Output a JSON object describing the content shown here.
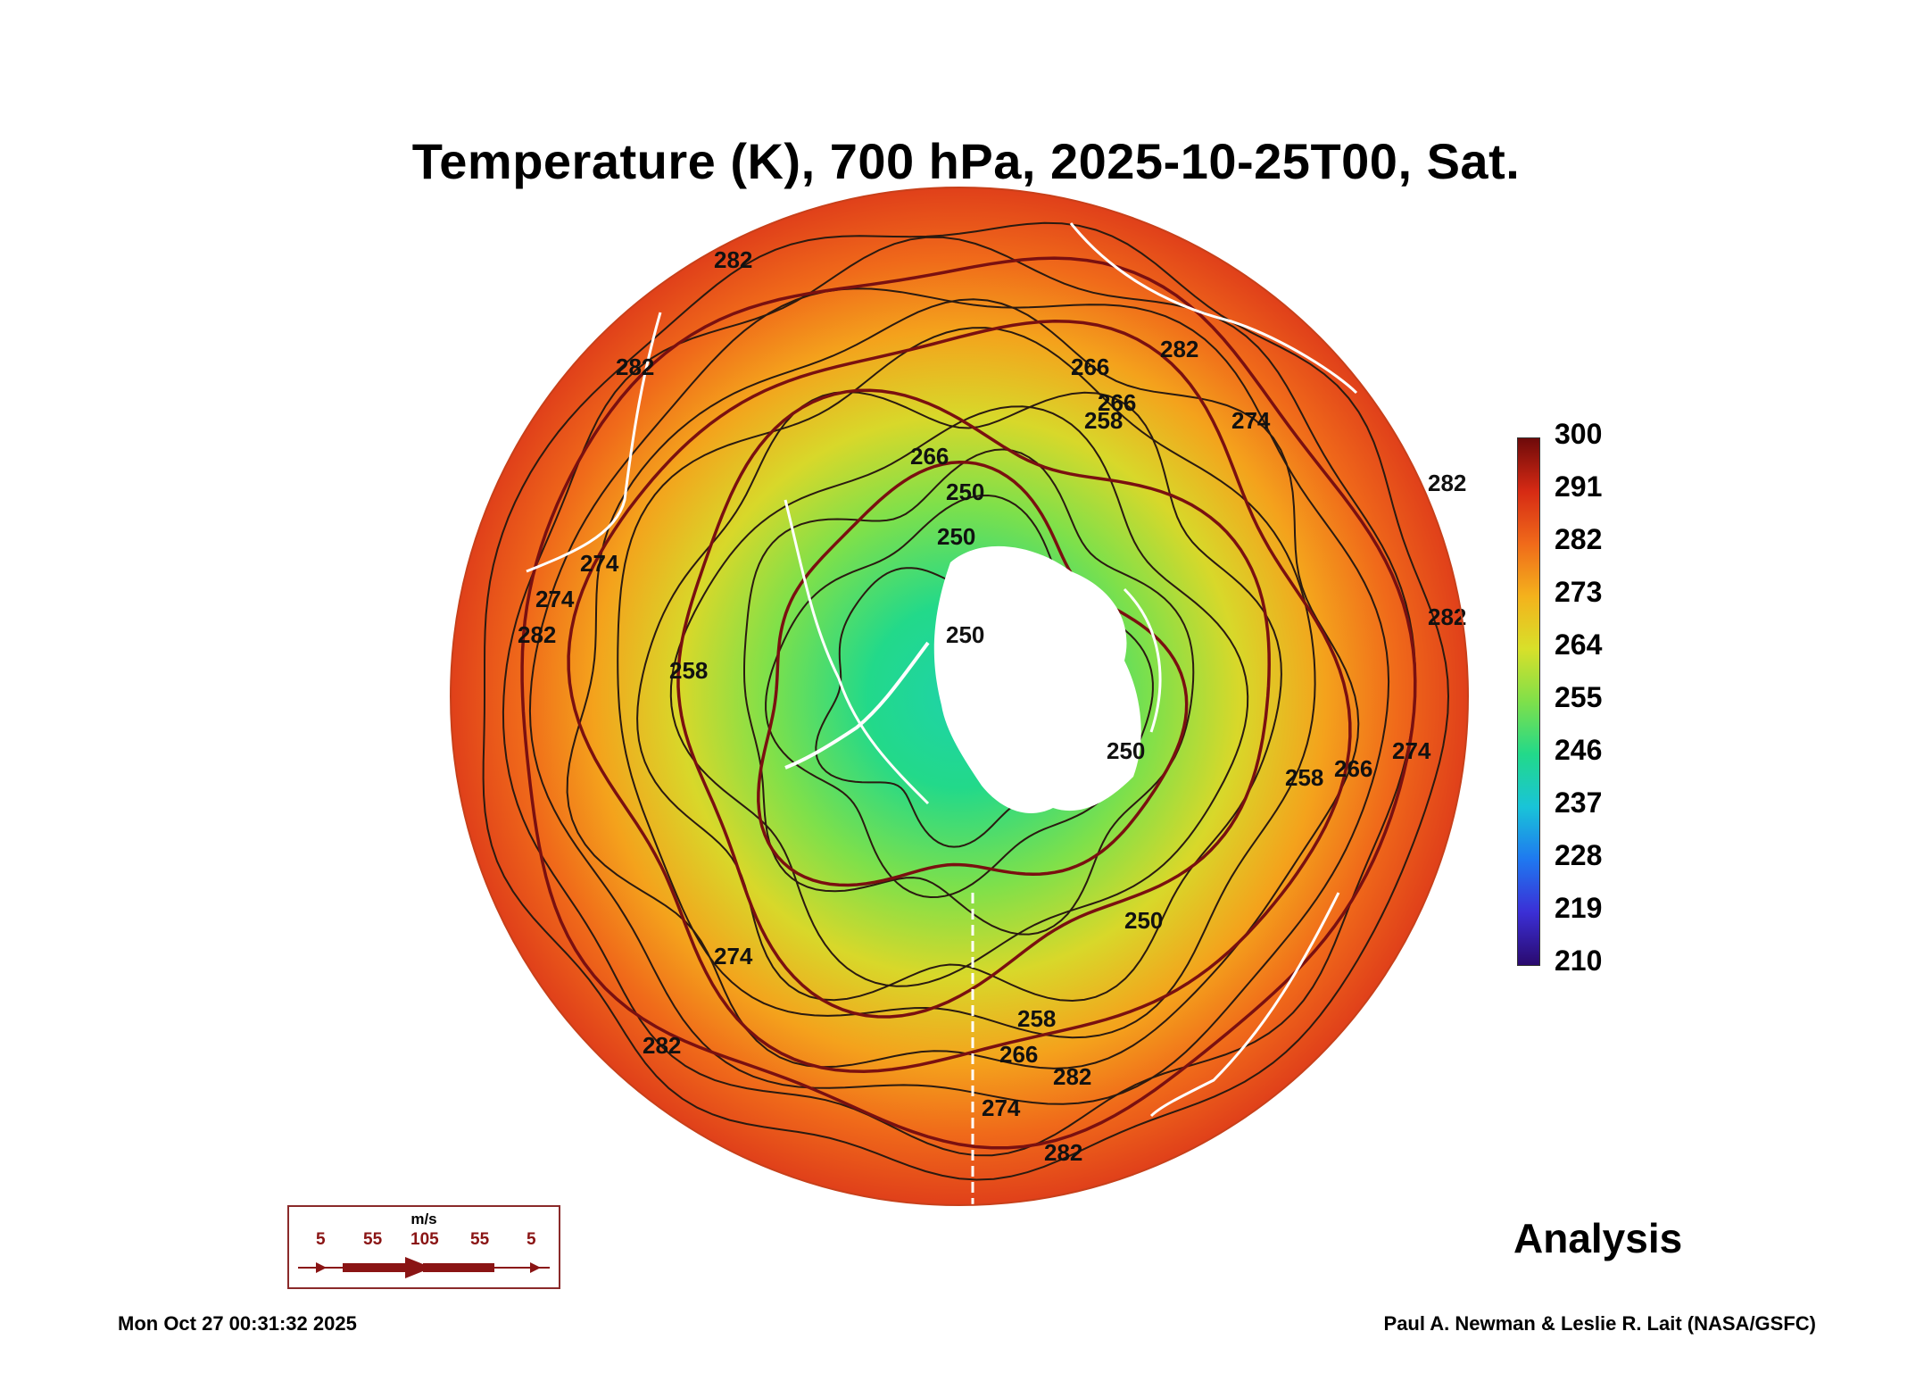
{
  "title": "Temperature (K), 700 hPa, 2025-10-25T00, Sat.",
  "colorbar": {
    "labels": [
      "300",
      "291",
      "282",
      "273",
      "264",
      "255",
      "246",
      "237",
      "228",
      "219",
      "210"
    ],
    "min": 210,
    "max": 300,
    "colors": [
      "#2a0a6e",
      "#3b2fd6",
      "#1f78f0",
      "#19c4d8",
      "#22d98a",
      "#7fe04a",
      "#d8e02a",
      "#f4b21c",
      "#f06a1a",
      "#d62a14",
      "#6e0a0a"
    ]
  },
  "contour_labels": [
    "282",
    "282",
    "282",
    "282",
    "266",
    "274",
    "266",
    "258",
    "250",
    "250",
    "258",
    "266",
    "274",
    "282",
    "250",
    "258",
    "266",
    "274",
    "282",
    "274",
    "282",
    "282",
    "258",
    "274",
    "250",
    "266",
    "250",
    "274",
    "282"
  ],
  "legend": {
    "units": "m/s",
    "values": [
      "5",
      "55",
      "105",
      "55",
      "5"
    ]
  },
  "analysis_label": "Analysis",
  "timestamp": "Mon Oct 27 00:31:32 2025",
  "credit": "Paul A. Newman & Leslie R. Lait (NASA/GSFC)"
}
